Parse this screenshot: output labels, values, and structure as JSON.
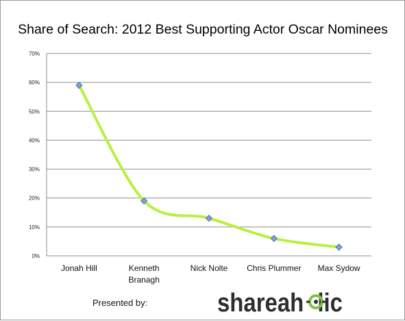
{
  "footer": {
    "presented_by": "Presented by:",
    "logo_text": "shareaholic"
  },
  "colors": {
    "line": "#b8f040",
    "marker_fill": "#7ea4d6",
    "marker_stroke": "#4a70a8",
    "grid": "#8c8c8c",
    "logo_text": "#2e2e2e",
    "logo_accent": "#7cc242"
  },
  "chart_data": {
    "type": "line",
    "title": "Share of Search: 2012 Best Supporting Actor Oscar Nominees",
    "xlabel": "",
    "ylabel": "",
    "categories": [
      [
        "Jonah Hill"
      ],
      [
        "Kenneth",
        "Branagh"
      ],
      [
        "Nick Nolte"
      ],
      [
        "Chris Plummer"
      ],
      [
        "Max Sydow"
      ]
    ],
    "series": [
      {
        "values": [
          59,
          19,
          13,
          6,
          3
        ]
      }
    ],
    "ylim": [
      0,
      70
    ],
    "yticks": [
      0,
      10,
      20,
      30,
      40,
      50,
      60,
      70
    ],
    "ytick_format": "percent",
    "grid": true,
    "legend": "none"
  }
}
